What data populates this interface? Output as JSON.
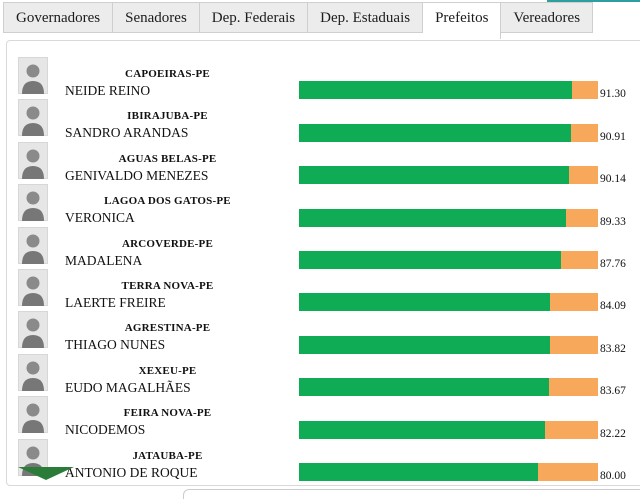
{
  "tabs": [
    {
      "label": "Governadores",
      "active": false
    },
    {
      "label": "Senadores",
      "active": false
    },
    {
      "label": "Dep. Federais",
      "active": false
    },
    {
      "label": "Dep. Estaduais",
      "active": false
    },
    {
      "label": "Prefeitos",
      "active": true
    },
    {
      "label": "Vereadores",
      "active": false
    }
  ],
  "colors": {
    "bar_green": "#0fab55",
    "bar_orange": "#f8a85a",
    "arrow_green": "#2b7c38",
    "teal_strip": "#2f9e9e"
  },
  "rows": [
    {
      "city": "CAPOEIRAS-PE",
      "name": "NEIDE REINO",
      "value": "91.30"
    },
    {
      "city": "IBIRAJUBA-PE",
      "name": "SANDRO ARANDAS",
      "value": "90.91"
    },
    {
      "city": "AGUAS BELAS-PE",
      "name": "GENIVALDO MENEZES",
      "value": "90.14"
    },
    {
      "city": "LAGOA DOS GATOS-PE",
      "name": "VERONICA",
      "value": "89.33"
    },
    {
      "city": "ARCOVERDE-PE",
      "name": "MADALENA",
      "value": "87.76"
    },
    {
      "city": "TERRA NOVA-PE",
      "name": "LAERTE FREIRE",
      "value": "84.09"
    },
    {
      "city": "AGRESTINA-PE",
      "name": "THIAGO NUNES",
      "value": "83.82"
    },
    {
      "city": "XEXEU-PE",
      "name": "EUDO MAGALHÃES",
      "value": "83.67"
    },
    {
      "city": "FEIRA NOVA-PE",
      "name": "NICODEMOS",
      "value": "82.22"
    },
    {
      "city": "JATAUBA-PE",
      "name": "ANTONIO DE ROQUE",
      "value": "80.00"
    }
  ],
  "chart_data": {
    "type": "bar",
    "orientation": "horizontal",
    "categories": [
      "CAPOEIRAS-PE",
      "IBIRAJUBA-PE",
      "AGUAS BELAS-PE",
      "LAGOA DOS GATOS-PE",
      "ARCOVERDE-PE",
      "TERRA NOVA-PE",
      "AGRESTINA-PE",
      "XEXEU-PE",
      "FEIRA NOVA-PE",
      "JATAUBA-PE"
    ],
    "series": [
      {
        "name": "score-green",
        "values": [
          91.3,
          90.91,
          90.14,
          89.33,
          87.76,
          84.09,
          83.82,
          83.67,
          82.22,
          80.0
        ]
      },
      {
        "name": "remainder-orange",
        "values": [
          8.7,
          9.09,
          9.86,
          10.67,
          12.24,
          15.91,
          16.18,
          16.33,
          17.78,
          20.0
        ]
      }
    ],
    "value_labels": [
      "91.30",
      "90.91",
      "90.14",
      "89.33",
      "87.76",
      "84.09",
      "83.82",
      "83.67",
      "82.22",
      "80.00"
    ],
    "xlim": [
      0,
      100
    ],
    "grid": false,
    "legend": false
  }
}
